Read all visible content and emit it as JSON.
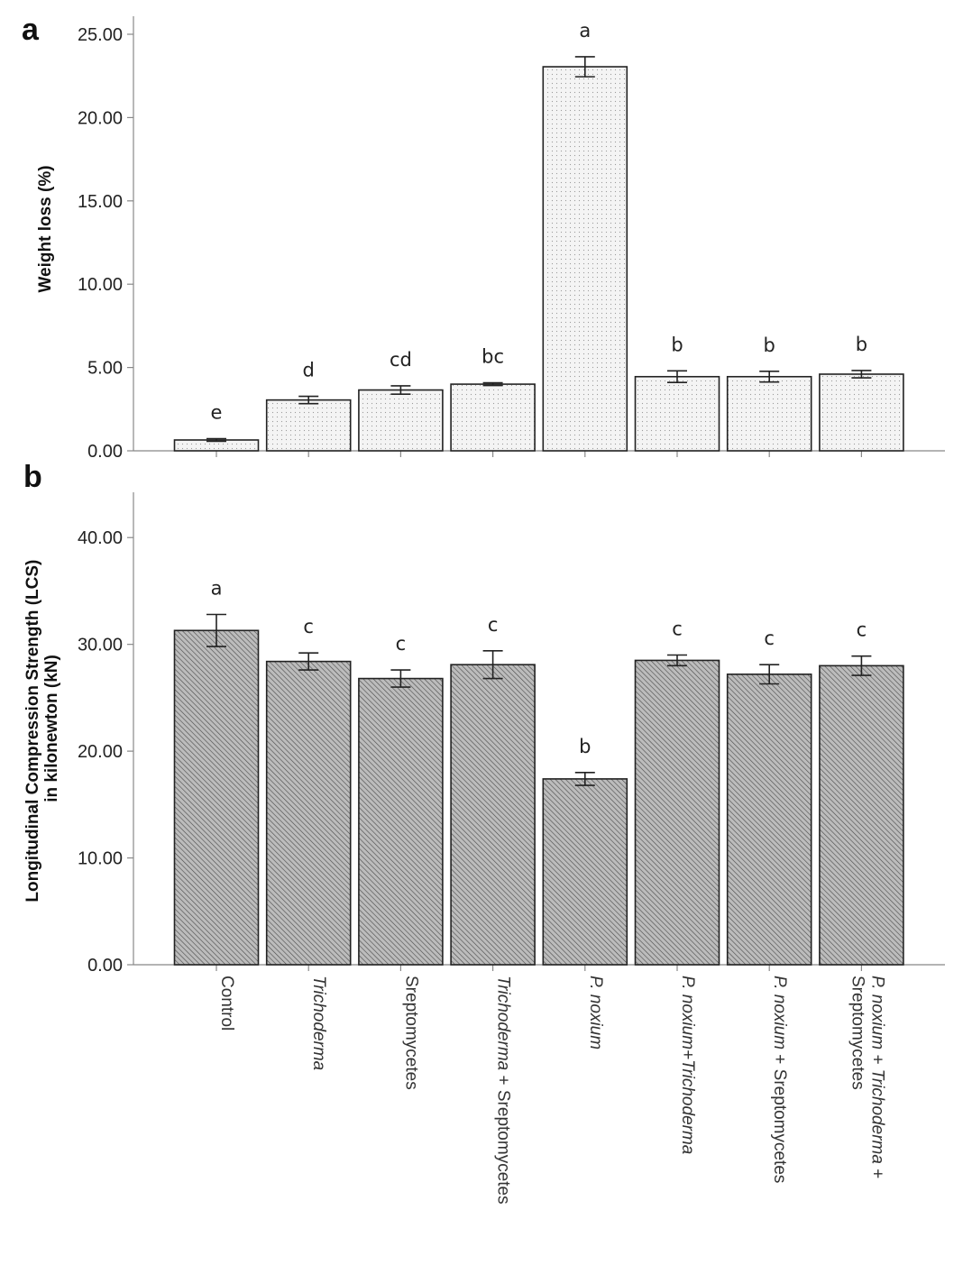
{
  "chart_data": [
    {
      "panel": "a",
      "type": "bar",
      "ylabel": "Weight loss (%)",
      "ylim": [
        0,
        25
      ],
      "yticks": [
        "0.00",
        "5.00",
        "10.00",
        "15.00",
        "20.00",
        "25.00"
      ],
      "ytick_values": [
        0,
        5,
        10,
        15,
        20,
        25
      ],
      "categories": [
        "Control",
        "Trichoderma",
        "Sreptomycetes",
        "Trichoderma + Sreptomycetes",
        "P. noxium",
        "P. noxium+Trichoderma",
        "P. noxium + Sreptomycetes",
        "P. noxium + Trichoderma + Sreptomycetes"
      ],
      "values": [
        0.65,
        3.05,
        3.65,
        4.0,
        23.05,
        4.45,
        4.45,
        4.6
      ],
      "errors": [
        0.08,
        0.22,
        0.25,
        0.08,
        0.6,
        0.35,
        0.32,
        0.22
      ],
      "significance": [
        "e",
        "d",
        "cd",
        "bc",
        "a",
        "b",
        "b",
        "b"
      ],
      "grid": false
    },
    {
      "panel": "b",
      "type": "bar",
      "ylabel_lines": [
        "Longitudinal Compression Strength (LCS)",
        "in kilonewton (kN)"
      ],
      "ylim": [
        0,
        45
      ],
      "yticks": [
        "0.00",
        "10.00",
        "20.00",
        "30.00",
        "40.00"
      ],
      "ytick_values": [
        0,
        10,
        20,
        30,
        40
      ],
      "categories": [
        "Control",
        "Trichoderma",
        "Sreptomycetes",
        "Trichoderma + Sreptomycetes",
        "P. noxium",
        "P. noxium+Trichoderma",
        "P. noxium + Sreptomycetes",
        "P. noxium + Trichoderma + Sreptomycetes"
      ],
      "values": [
        31.3,
        28.4,
        26.8,
        28.1,
        17.4,
        28.5,
        27.2,
        28.0
      ],
      "errors": [
        1.5,
        0.8,
        0.8,
        1.3,
        0.6,
        0.5,
        0.9,
        0.9
      ],
      "significance": [
        "a",
        "c",
        "c",
        "c",
        "b",
        "c",
        "c",
        "c"
      ],
      "grid": false
    }
  ],
  "panel_labels": {
    "a": "a",
    "b": "b"
  },
  "x_labels": [
    {
      "parts": [
        {
          "t": "Control",
          "i": false
        }
      ]
    },
    {
      "parts": [
        {
          "t": "Trichoderma",
          "i": true
        }
      ]
    },
    {
      "parts": [
        {
          "t": "Sreptomycetes",
          "i": false
        }
      ]
    },
    {
      "parts": [
        {
          "t": "Trichoderma",
          "i": true
        },
        {
          "t": " + Sreptomycetes",
          "i": false
        }
      ]
    },
    {
      "parts": [
        {
          "t": "P. noxium",
          "i": true
        }
      ]
    },
    {
      "parts": [
        {
          "t": "P. noxium+Trichoderma",
          "i": true
        }
      ]
    },
    {
      "parts": [
        {
          "t": "P. noxium",
          "i": true
        },
        {
          "t": " + Sreptomycetes",
          "i": false
        }
      ]
    },
    {
      "parts": [
        {
          "t": "P. noxium + Trichoderma",
          "i": true
        },
        {
          "t": " +",
          "i": false
        }
      ],
      "line2": "Sreptomycetes"
    }
  ],
  "colors": {
    "bar_a_fill": "#f4f4f4",
    "bar_a_dot": "#9a9a9a",
    "bar_b_fill": "#bcbcbc",
    "bar_b_hatch": "#4a4a4a"
  }
}
